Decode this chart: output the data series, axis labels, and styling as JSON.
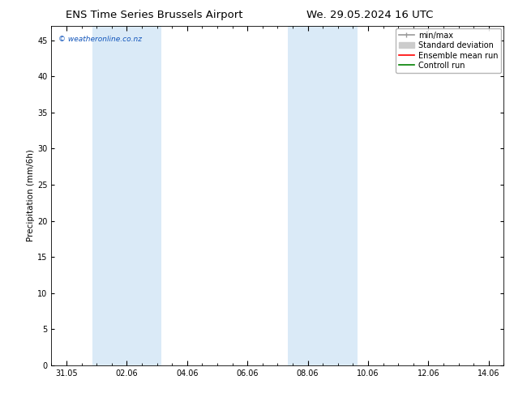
{
  "title_left": "ENS Time Series Brussels Airport",
  "title_right": "We. 29.05.2024 16 UTC",
  "ylabel": "Precipitation (mm/6h)",
  "xlabel": "",
  "ylim": [
    0,
    47
  ],
  "yticks": [
    0,
    5,
    10,
    15,
    20,
    25,
    30,
    35,
    40,
    45
  ],
  "xtick_labels": [
    "31.05",
    "02.06",
    "04.06",
    "06.06",
    "08.06",
    "10.06",
    "12.06",
    "14.06"
  ],
  "xtick_positions": [
    0,
    2,
    4,
    6,
    8,
    10,
    12,
    14
  ],
  "xlim": [
    -0.5,
    14.5
  ],
  "bg_color": "#ffffff",
  "plot_bg_color": "#ffffff",
  "shaded_regions": [
    {
      "xmin": 0.85,
      "xmax": 3.15,
      "color": "#daeaf7"
    },
    {
      "xmin": 7.35,
      "xmax": 9.65,
      "color": "#daeaf7"
    }
  ],
  "legend_entries": [
    {
      "label": "min/max",
      "color": "#999999",
      "lw": 1.2
    },
    {
      "label": "Standard deviation",
      "color": "#cccccc",
      "lw": 5
    },
    {
      "label": "Ensemble mean run",
      "color": "#ff0000",
      "lw": 1.2
    },
    {
      "label": "Controll run",
      "color": "#008000",
      "lw": 1.2
    }
  ],
  "copyright_text": "© weatheronline.co.nz",
  "copyright_color": "#1155bb",
  "title_fontsize": 9.5,
  "tick_fontsize": 7,
  "legend_fontsize": 7,
  "ylabel_fontsize": 7.5
}
